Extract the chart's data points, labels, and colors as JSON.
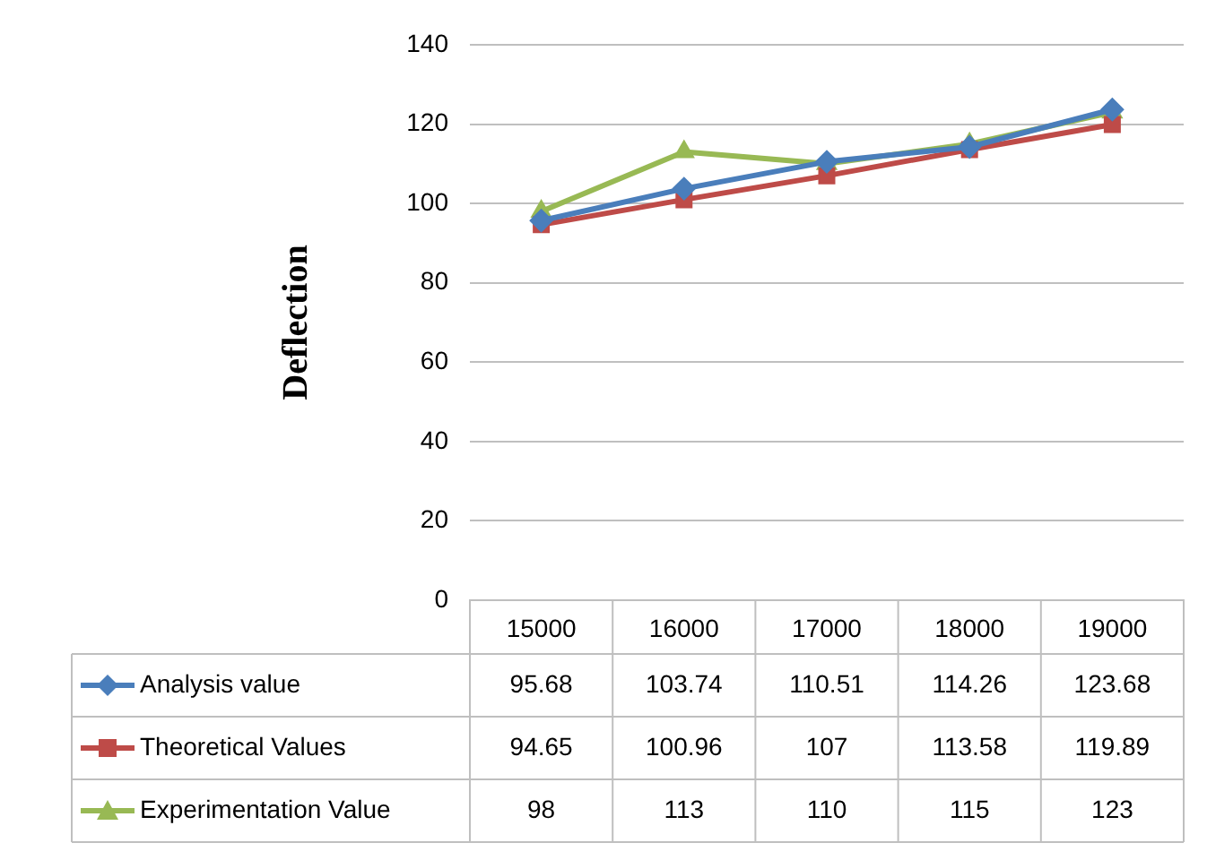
{
  "chart_data": {
    "type": "line",
    "ylabel": "Deflection",
    "categories": [
      "15000",
      "16000",
      "17000",
      "18000",
      "19000"
    ],
    "series": [
      {
        "name": "Analysis value",
        "color": "#4a7ebb",
        "marker": "diamond",
        "values": [
          95.68,
          103.74,
          110.51,
          114.26,
          123.68
        ]
      },
      {
        "name": "Theoretical Values",
        "color": "#be4b48",
        "marker": "square",
        "values": [
          94.65,
          100.96,
          107,
          113.58,
          119.89
        ]
      },
      {
        "name": "Experimentation Value",
        "color": "#98b954",
        "marker": "triangle",
        "values": [
          98,
          113,
          110,
          115,
          123
        ]
      }
    ],
    "ylim": [
      0,
      140
    ],
    "yticks": [
      0,
      20,
      40,
      60,
      80,
      100,
      120,
      140
    ],
    "grid": "y",
    "legend": "bottom",
    "data_labels": true
  }
}
